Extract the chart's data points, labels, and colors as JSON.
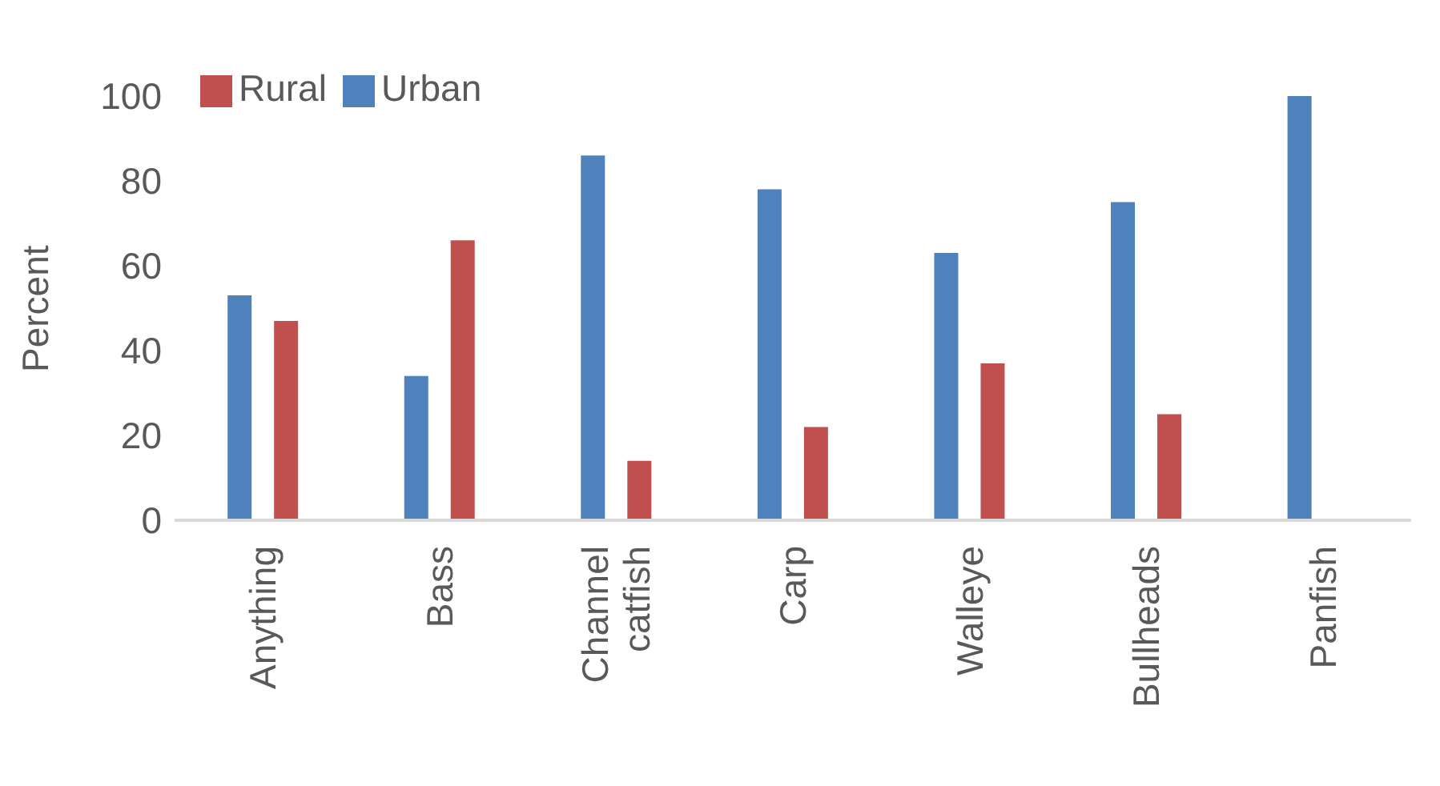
{
  "chart_data": {
    "type": "bar",
    "ylabel": "Percent",
    "categories": [
      "Anything",
      "Bass",
      "Channel catfish",
      "Carp",
      "Walleye",
      "Bullheads",
      "Panfish"
    ],
    "series": [
      {
        "name": "Urban",
        "color": "#4f81bd",
        "values": [
          53,
          34,
          86,
          78,
          63,
          75,
          100
        ]
      },
      {
        "name": "Rural",
        "color": "#c0504d",
        "values": [
          47,
          66,
          14,
          22,
          37,
          25,
          0
        ]
      }
    ],
    "ylim": [
      0,
      100
    ],
    "yticks": [
      0,
      20,
      40,
      60,
      80,
      100
    ],
    "legend": "top left"
  }
}
